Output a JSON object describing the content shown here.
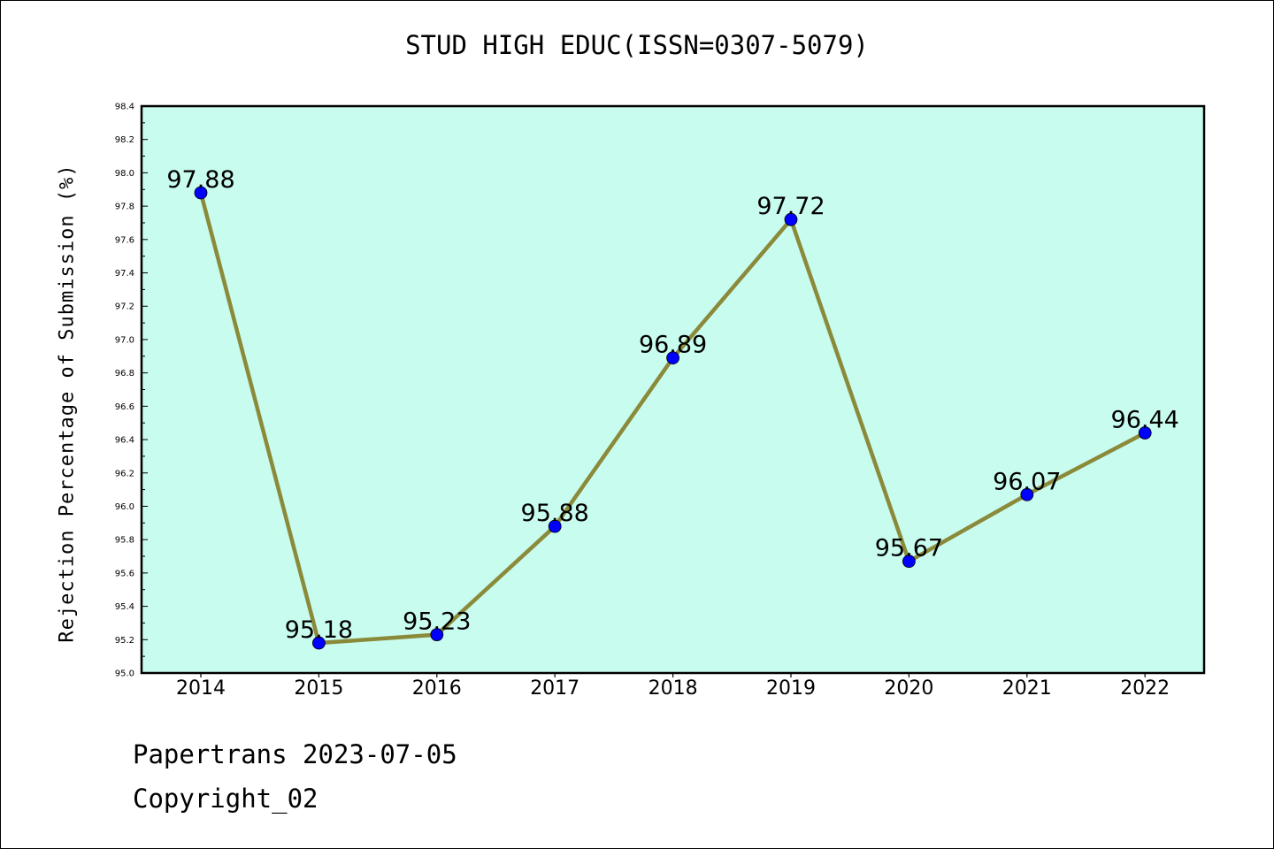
{
  "chart_data": {
    "type": "line",
    "title": "STUD HIGH EDUC(ISSN=0307-5079)",
    "xlabel": "",
    "ylabel": "Rejection Percentage of Submission (%)",
    "categories": [
      "2014",
      "2015",
      "2016",
      "2017",
      "2018",
      "2019",
      "2020",
      "2021",
      "2022"
    ],
    "series": [
      {
        "values": [
          97.88,
          95.18,
          95.23,
          95.88,
          96.89,
          97.72,
          95.67,
          96.07,
          96.44
        ]
      }
    ],
    "data_labels": [
      "97.88",
      "95.18",
      "95.23",
      "95.88",
      "96.89",
      "97.72",
      "95.67",
      "96.07",
      "96.44"
    ],
    "ylim": [
      95.0,
      98.4
    ],
    "yticks": [
      "95.0",
      "95.2",
      "95.4",
      "95.6",
      "95.8",
      "96.0",
      "96.2",
      "96.4",
      "96.6",
      "96.8",
      "97.0",
      "97.2",
      "97.4",
      "97.6",
      "97.8",
      "98.0",
      "98.2",
      "98.4"
    ],
    "grid": false,
    "colors": {
      "plot_background": "#c8fcef",
      "line": "#8b8a3a",
      "marker": "#0000ff"
    }
  },
  "footer": {
    "line1": "Papertrans 2023-07-05",
    "line2": "Copyright_02"
  }
}
